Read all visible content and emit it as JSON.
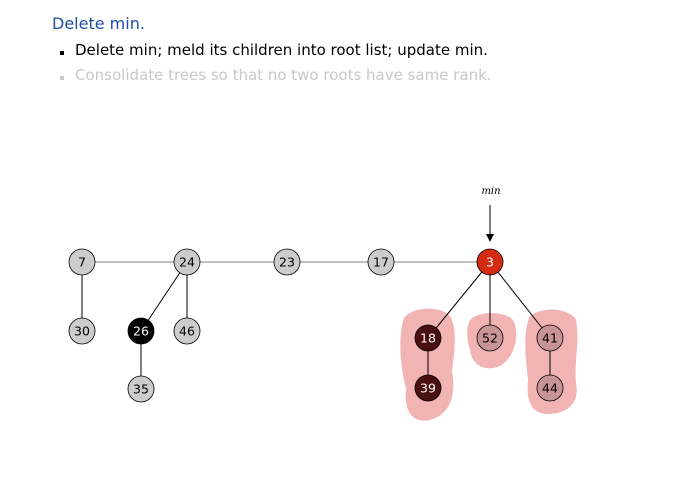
{
  "title": "Delete min.",
  "bullets": [
    "Delete min; meld its children into root list; update min.",
    "Consolidate trees so that no two roots have same rank."
  ],
  "diagram": {
    "min_pointer_label": "min",
    "colors": {
      "default_node": "#cccccc",
      "marked_node": "#000000",
      "min_node": "#d42a14",
      "dark_child": "#4a0f0f",
      "light_child": "#c99494",
      "highlight": "#f2b3b3"
    },
    "nodes": {
      "n7": "7",
      "n24": "24",
      "n23": "23",
      "n17": "17",
      "n3": "3",
      "n30": "30",
      "n26": "26",
      "n46": "46",
      "n35": "35",
      "n18": "18",
      "n52": "52",
      "n41": "41",
      "n39": "39",
      "n44": "44"
    }
  }
}
